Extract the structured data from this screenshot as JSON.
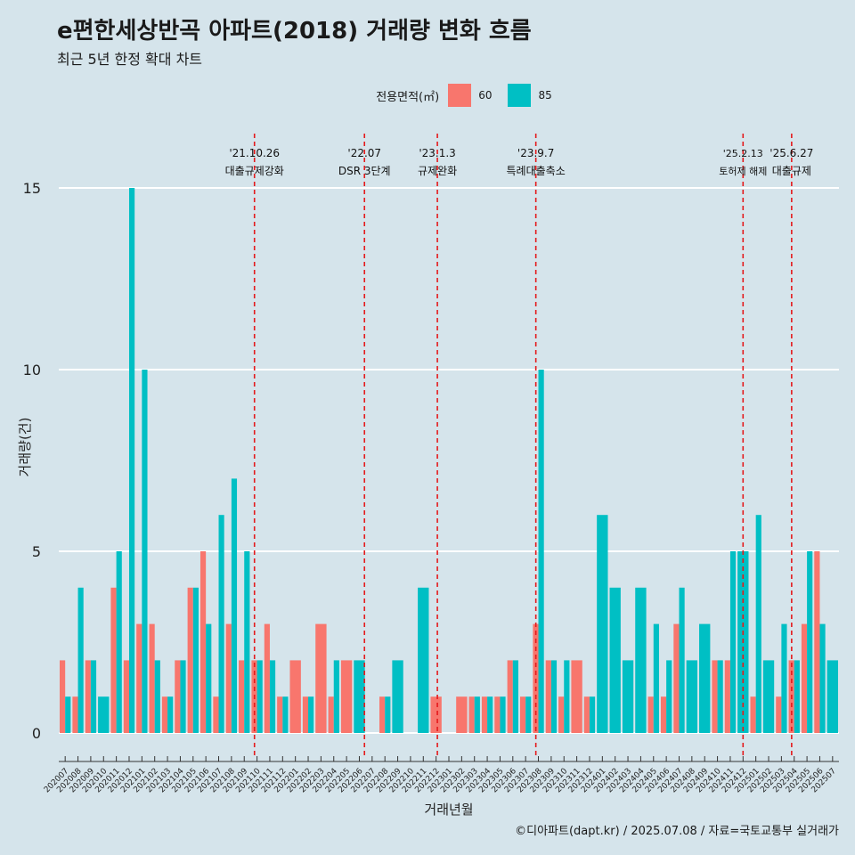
{
  "title": "e편한세상반곡 아파트(2018) 거래량 변화 흐름",
  "subtitle": "최근 5년 한정 확대 차트",
  "caption": "©디아파트(dapt.kr) / 2025.07.08 / 자료=국토교통부 실거래가",
  "colors": {
    "s60": "#f8766d",
    "s85": "#00bfc4",
    "event": "#e41a1c",
    "grid": "#ffffff"
  },
  "chart_data": {
    "type": "bar",
    "xlabel": "거래년월",
    "ylabel": "거래량(건)",
    "ylim": [
      0,
      15
    ],
    "yticks": [
      0,
      5,
      10,
      15
    ],
    "legend": {
      "title": "전용면적(㎡)",
      "position": "top"
    },
    "categories": [
      "202007",
      "202008",
      "202009",
      "202010",
      "202011",
      "202012",
      "202101",
      "202102",
      "202103",
      "202104",
      "202105",
      "202106",
      "202107",
      "202108",
      "202109",
      "202110",
      "202111",
      "202112",
      "202201",
      "202202",
      "202203",
      "202204",
      "202205",
      "202206",
      "202207",
      "202208",
      "202209",
      "202210",
      "202211",
      "202212",
      "202301",
      "202302",
      "202303",
      "202304",
      "202305",
      "202306",
      "202307",
      "202308",
      "202309",
      "202310",
      "202311",
      "202312",
      "202401",
      "202402",
      "202403",
      "202404",
      "202405",
      "202406",
      "202407",
      "202408",
      "202409",
      "202410",
      "202411",
      "202412",
      "202501",
      "202502",
      "202503",
      "202504",
      "202505",
      "202506",
      "202507"
    ],
    "series": [
      {
        "name": "60",
        "values": [
          2,
          1,
          2,
          0,
          4,
          2,
          3,
          3,
          1,
          2,
          4,
          5,
          1,
          3,
          2,
          2,
          3,
          1,
          2,
          1,
          3,
          1,
          2,
          0,
          0,
          1,
          0,
          0,
          0,
          1,
          0,
          1,
          1,
          1,
          1,
          2,
          1,
          3,
          2,
          1,
          2,
          1,
          0,
          0,
          0,
          0,
          1,
          1,
          3,
          0,
          0,
          2,
          2,
          0,
          1,
          0,
          1,
          2,
          3,
          5,
          0
        ]
      },
      {
        "name": "85",
        "values": [
          1,
          4,
          2,
          1,
          5,
          15,
          10,
          2,
          1,
          2,
          4,
          3,
          6,
          7,
          5,
          2,
          2,
          1,
          0,
          1,
          0,
          2,
          0,
          2,
          0,
          1,
          2,
          0,
          4,
          0,
          0,
          0,
          1,
          1,
          1,
          2,
          1,
          10,
          2,
          2,
          0,
          1,
          6,
          4,
          2,
          4,
          3,
          2,
          4,
          2,
          3,
          2,
          5,
          5,
          6,
          2,
          3,
          2,
          5,
          3,
          2
        ]
      }
    ],
    "events": [
      {
        "index": 15.3,
        "date": "'21.10.26",
        "label": "대출규제강화"
      },
      {
        "index": 23.9,
        "date": "'22.07",
        "label": "DSR 3단계"
      },
      {
        "index": 29.6,
        "date": "'23.1.3",
        "label": "규제완화"
      },
      {
        "index": 37.3,
        "date": "'23.9.7",
        "label": "특례대출축소"
      },
      {
        "index": 53.5,
        "date": "'25.2.13",
        "label": "토허제 해제"
      },
      {
        "index": 57.3,
        "date": "'25.6.27",
        "label": "대출규제"
      }
    ]
  }
}
